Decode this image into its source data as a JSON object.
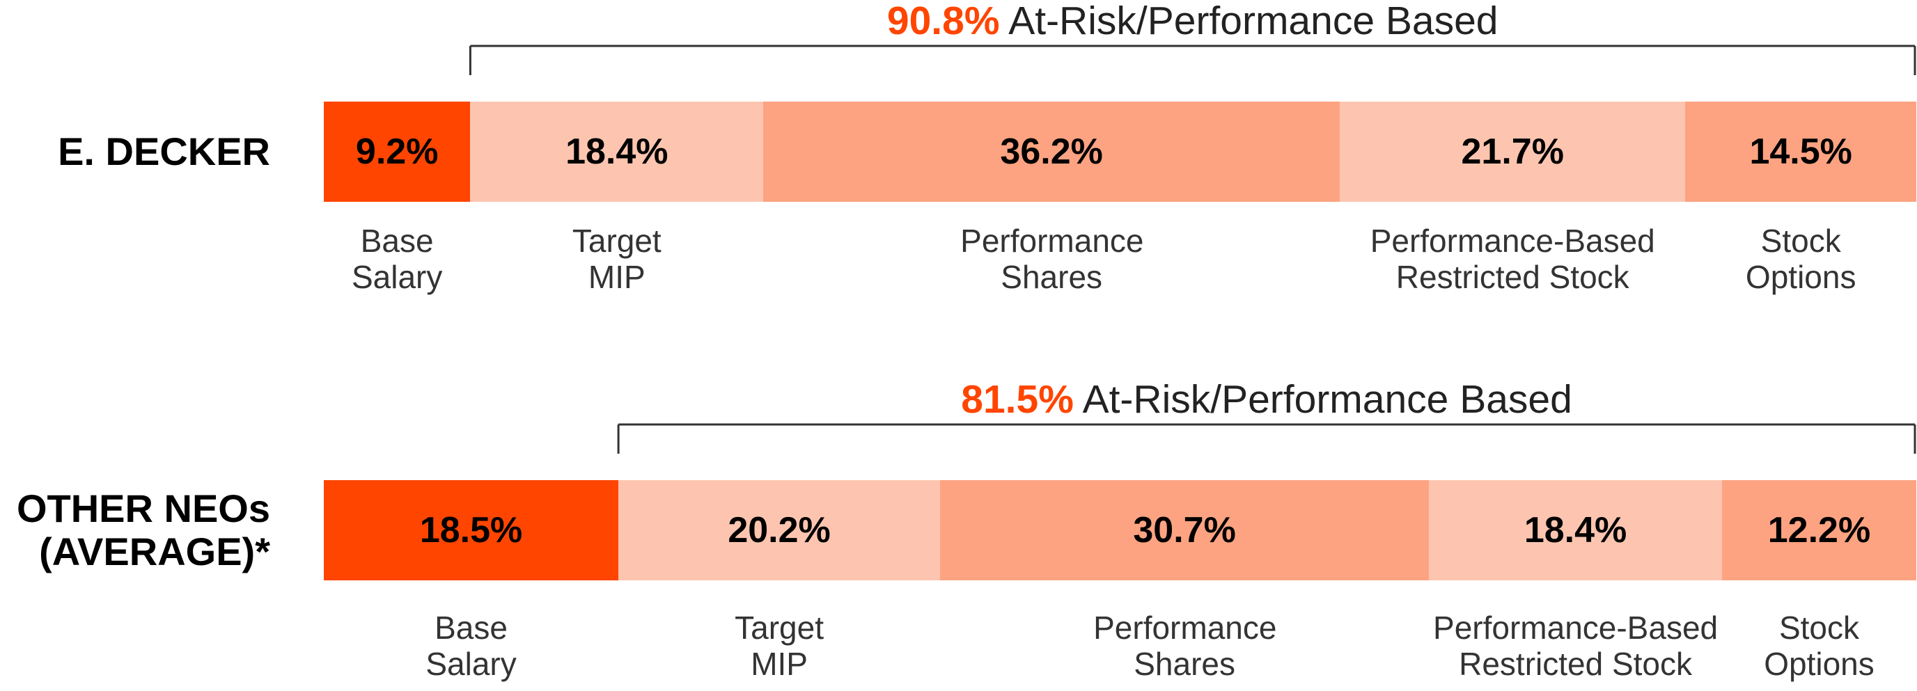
{
  "chart_data": [
    {
      "type": "bar",
      "orientation": "horizontal",
      "stacked": true,
      "categories": [
        "E. DECKER"
      ],
      "xlim": [
        0,
        100
      ],
      "annotation": {
        "value": 90.8,
        "value_label": "90.8%",
        "text": "At-Risk/Performance Based"
      },
      "series": [
        {
          "name": "Base Salary",
          "color": "#ff4500",
          "values": [
            9.2
          ],
          "value_labels": [
            "9.2%"
          ]
        },
        {
          "name": "Target MIP",
          "color": "#fdc5b0",
          "values": [
            18.4
          ],
          "value_labels": [
            "18.4%"
          ]
        },
        {
          "name": "Performance Shares",
          "color": "#fda381",
          "values": [
            36.2
          ],
          "value_labels": [
            "36.2%"
          ]
        },
        {
          "name": "Performance-Based Restricted Stock",
          "color": "#fdc5b0",
          "values": [
            21.7
          ],
          "value_labels": [
            "21.7%"
          ]
        },
        {
          "name": "Stock Options",
          "color": "#fda381",
          "values": [
            14.5
          ],
          "value_labels": [
            "14.5%"
          ]
        }
      ]
    },
    {
      "type": "bar",
      "orientation": "horizontal",
      "stacked": true,
      "categories": [
        "OTHER NEOs (AVERAGE)*"
      ],
      "xlim": [
        0,
        100
      ],
      "annotation": {
        "value": 81.5,
        "value_label": "81.5%",
        "text": "At-Risk/Performance Based"
      },
      "series": [
        {
          "name": "Base Salary",
          "color": "#ff4500",
          "values": [
            18.5
          ],
          "value_labels": [
            "18.5%"
          ]
        },
        {
          "name": "Target MIP",
          "color": "#fdc5b0",
          "values": [
            20.2
          ],
          "value_labels": [
            "20.2%"
          ]
        },
        {
          "name": "Performance Shares",
          "color": "#fda381",
          "values": [
            30.7
          ],
          "value_labels": [
            "30.7%"
          ]
        },
        {
          "name": "Performance-Based Restricted Stock",
          "color": "#fdc5b0",
          "values": [
            18.4
          ],
          "value_labels": [
            "18.4%"
          ]
        },
        {
          "name": "Stock Options",
          "color": "#fda381",
          "values": [
            12.2
          ],
          "value_labels": [
            "12.2%"
          ]
        }
      ]
    }
  ]
}
